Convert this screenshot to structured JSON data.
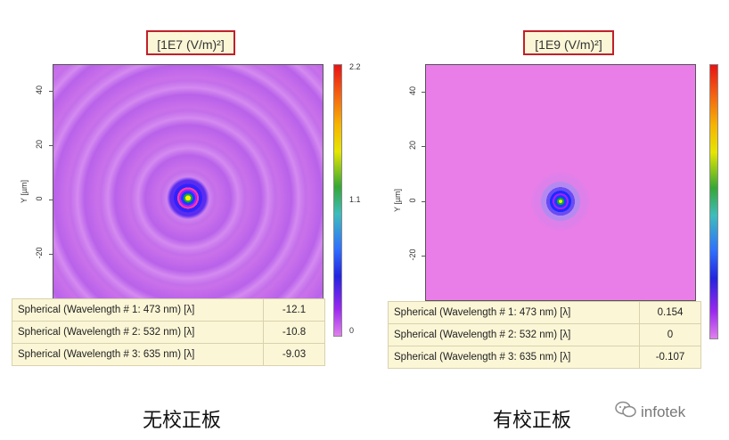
{
  "left": {
    "unit_label": "[1E7 (V/m)²]",
    "ylabel": "Y [µm]",
    "yticks": [
      "40",
      "20",
      "0",
      "-20"
    ],
    "colorbar_ticks": [
      "2.2",
      "1.1",
      "0"
    ],
    "metrics": [
      {
        "label": "Spherical (Wavelength # 1: 473 nm) [λ]",
        "value": "-12.1"
      },
      {
        "label": "Spherical (Wavelength # 2: 532 nm) [λ]",
        "value": "-10.8"
      },
      {
        "label": "Spherical (Wavelength # 3: 635 nm) [λ]",
        "value": "-9.03"
      }
    ],
    "caption": "无校正板"
  },
  "right": {
    "unit_label": "[1E9 (V/m)²]",
    "ylabel": "Y [µm]",
    "yticks": [
      "40",
      "20",
      "0",
      "-20"
    ],
    "metrics": [
      {
        "label": "Spherical (Wavelength # 1: 473 nm) [λ]",
        "value": "0.154"
      },
      {
        "label": "Spherical (Wavelength # 2: 532 nm) [λ]",
        "value": "0"
      },
      {
        "label": "Spherical (Wavelength # 3: 635 nm) [λ]",
        "value": "-0.107"
      }
    ],
    "caption": "有校正板"
  },
  "watermark": "infotek",
  "colors": {
    "field_bg_left": "#d67ee6",
    "field_bg_right": "#e97ee8",
    "caption_border": "#c0202a",
    "table_bg": "#fbf6d6"
  }
}
